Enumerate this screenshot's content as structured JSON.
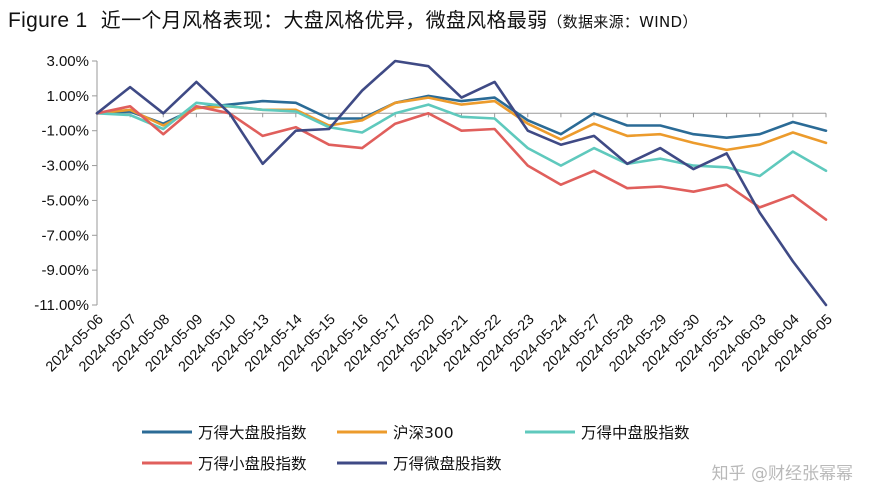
{
  "header": {
    "fig_label": "Figure 1",
    "title": "近一个月风格表现：大盘风格优异，微盘风格最弱",
    "source": "（数据来源：WIND）"
  },
  "watermark": "知乎 @财经张幂幂",
  "chart_data": {
    "type": "line",
    "title": "近一个月风格表现：大盘风格优异，微盘风格最弱",
    "xlabel": "",
    "ylabel": "",
    "ylim": [
      -11,
      3
    ],
    "y_ticks": [
      "3.00%",
      "1.00%",
      "-1.00%",
      "-3.00%",
      "-5.00%",
      "-7.00%",
      "-9.00%",
      "-11.00%"
    ],
    "y_tick_values": [
      3,
      1,
      -1,
      -3,
      -5,
      -7,
      -9,
      -11
    ],
    "grid": false,
    "legend_position": "bottom",
    "x": [
      "2024-05-06",
      "2024-05-07",
      "2024-05-08",
      "2024-05-09",
      "2024-05-10",
      "2024-05-13",
      "2024-05-14",
      "2024-05-15",
      "2024-05-16",
      "2024-05-17",
      "2024-05-20",
      "2024-05-21",
      "2024-05-22",
      "2024-05-23",
      "2024-05-24",
      "2024-05-27",
      "2024-05-28",
      "2024-05-29",
      "2024-05-30",
      "2024-05-31",
      "2024-06-03",
      "2024-06-04",
      "2024-06-05"
    ],
    "series": [
      {
        "name": "万得大盘股指数",
        "color": "#2b6b96",
        "values": [
          0,
          0.1,
          -0.6,
          0.3,
          0.5,
          0.7,
          0.6,
          -0.3,
          -0.3,
          0.6,
          1.0,
          0.7,
          0.9,
          -0.4,
          -1.2,
          0.0,
          -0.7,
          -0.7,
          -1.2,
          -1.4,
          -1.2,
          -0.5,
          -1.0
        ]
      },
      {
        "name": "沪深300",
        "color": "#ec9b2c",
        "values": [
          0,
          0.2,
          -0.7,
          0.3,
          0.4,
          0.2,
          0.2,
          -0.7,
          -0.4,
          0.6,
          0.9,
          0.5,
          0.7,
          -0.6,
          -1.5,
          -0.6,
          -1.3,
          -1.2,
          -1.7,
          -2.1,
          -1.8,
          -1.1,
          -1.7
        ]
      },
      {
        "name": "万得中盘股指数",
        "color": "#5fc9bd",
        "values": [
          0,
          -0.1,
          -0.9,
          0.6,
          0.4,
          0.2,
          0.1,
          -0.8,
          -1.1,
          0.0,
          0.5,
          -0.2,
          -0.3,
          -2.0,
          -3.0,
          -2.0,
          -2.9,
          -2.6,
          -3.0,
          -3.1,
          -3.6,
          -2.2,
          -3.3
        ]
      },
      {
        "name": "万得小盘股指数",
        "color": "#e05f5c",
        "values": [
          0,
          0.4,
          -1.2,
          0.4,
          0.0,
          -1.3,
          -0.8,
          -1.8,
          -2.0,
          -0.6,
          0.0,
          -1.0,
          -0.9,
          -3.0,
          -4.1,
          -3.3,
          -4.3,
          -4.2,
          -4.5,
          -4.1,
          -5.4,
          -4.7,
          -6.1
        ]
      },
      {
        "name": "万得微盘股指数",
        "color": "#3f4a85",
        "values": [
          0,
          1.5,
          0.0,
          1.8,
          0.0,
          -2.9,
          -1.0,
          -0.9,
          1.3,
          3.0,
          2.7,
          0.9,
          1.8,
          -1.0,
          -1.8,
          -1.3,
          -2.9,
          -2.0,
          -3.2,
          -2.3,
          -5.7,
          -8.5,
          -11.0
        ]
      }
    ]
  }
}
